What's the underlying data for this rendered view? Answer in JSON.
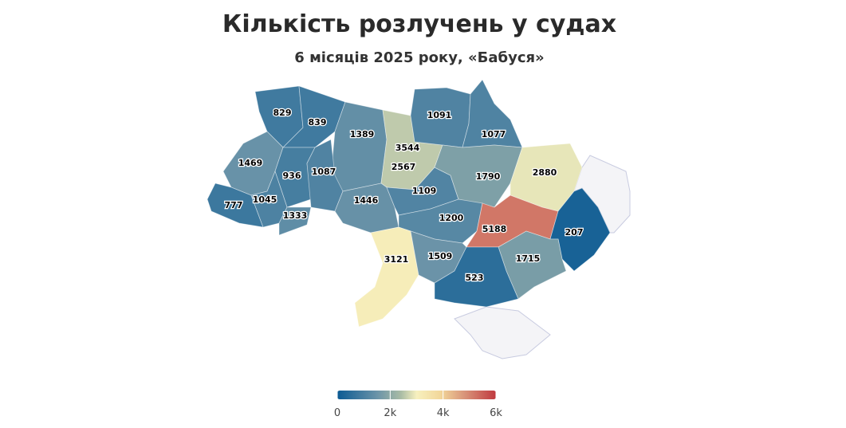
{
  "chart_data": {
    "type": "choropleth",
    "title": "Кількість розлучень у судах",
    "subtitle": "6 місяців 2025 року, «Бабуся»",
    "values": [
      829,
      839,
      1389,
      3544,
      2567,
      1091,
      1077,
      1469,
      936,
      1087,
      777,
      1045,
      1333,
      1446,
      1109,
      1790,
      2880,
      1200,
      5188,
      207,
      3121,
      1509,
      1715,
      523
    ],
    "colorscale": [
      [
        0,
        "#0b5a93"
      ],
      [
        0.25,
        "#6a93a8"
      ],
      [
        0.4,
        "#a9bca5"
      ],
      [
        0.5,
        "#f7f0be"
      ],
      [
        0.65,
        "#f2d79a"
      ],
      [
        0.8,
        "#d9957a"
      ],
      [
        1,
        "#c0393f"
      ]
    ],
    "missing_color": "#f4f4f7",
    "clim": [
      0,
      6000
    ],
    "cticks": [
      0,
      {
        "value": 2000,
        "label": "2k"
      },
      {
        "value": 4000,
        "label": "4k"
      },
      {
        "value": 6000,
        "label": "6k"
      }
    ]
  }
}
